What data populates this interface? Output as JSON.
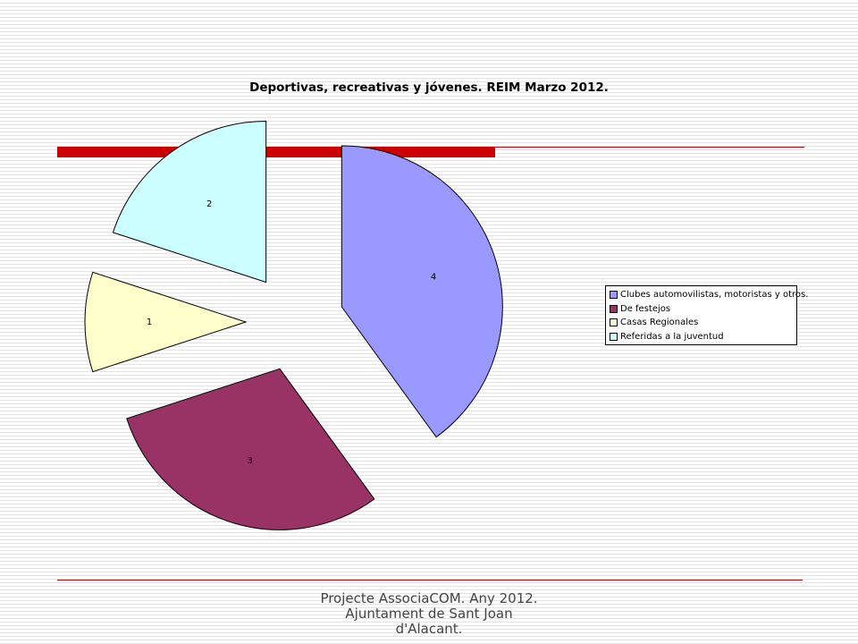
{
  "chart_data": {
    "type": "pie",
    "title": "Deportivas, recreativas y jóvenes. REIM Marzo 2012.",
    "categories": [
      "Clubes automovilistas, motoristas y otros.",
      "De festejos",
      "Casas Regionales",
      "Referidas a la juventud"
    ],
    "values": [
      4,
      3,
      1,
      2
    ],
    "colors": [
      "#9999ff",
      "#993366",
      "#ffffcc",
      "#ccffff"
    ],
    "legend_position": "right",
    "exploded": true
  },
  "footer": {
    "line1": "Projecte AssociaCOM. Any 2012.",
    "line2": "Ajuntament de Sant Joan",
    "line3": "d'Alacant."
  }
}
